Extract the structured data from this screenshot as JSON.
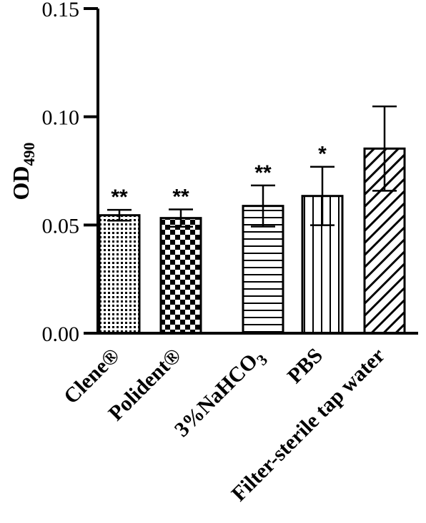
{
  "chart_data": {
    "type": "bar",
    "categories": [
      "Clene®",
      "Polident®",
      "3%NaHCO3",
      "PBS",
      "Filter-sterile tap water"
    ],
    "values": [
      0.0545,
      0.0532,
      0.0588,
      0.0634,
      0.0853
    ],
    "errors": [
      0.0025,
      0.004,
      0.0095,
      0.0135,
      0.0195
    ],
    "significance": [
      "**",
      "**",
      "**",
      "*",
      ""
    ],
    "patterns": [
      "dots",
      "checker",
      "hlines",
      "vlines",
      "diag"
    ],
    "ylabel": "OD490",
    "ylabel_main": "OD",
    "ylabel_sub": "490",
    "ylim": [
      0,
      0.15
    ],
    "yticks": [
      "0.00",
      "0.05",
      "0.10",
      "0.15"
    ],
    "ytick_values": [
      0,
      0.05,
      0.1,
      0.15
    ],
    "grid": false
  }
}
